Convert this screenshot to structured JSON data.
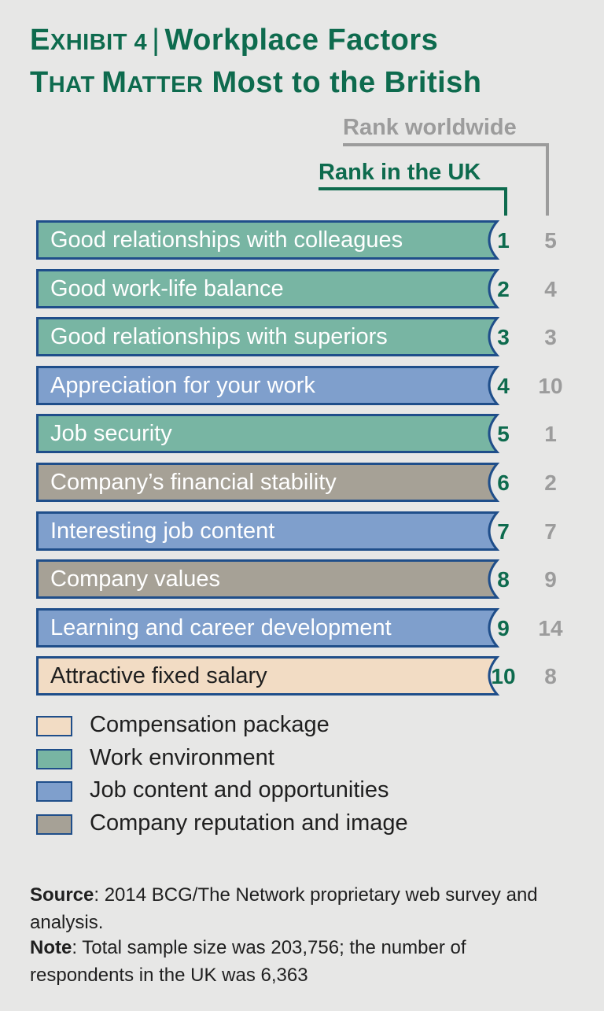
{
  "title": {
    "exhibit_first": "E",
    "exhibit_rest": "XHIBIT 4",
    "separator": "|",
    "line1_rest": "Workplace Factors",
    "line2_caps_a_first": "T",
    "line2_caps_a_rest": "HAT ",
    "line2_caps_b_first": "M",
    "line2_caps_b_rest": "ATTER",
    "line2_rest": " Most to the British"
  },
  "columns": {
    "world_label": "Rank worldwide",
    "uk_label": "Rank in the UK"
  },
  "colors": {
    "work_environment": "#78b5a3",
    "job_content": "#7f9fcc",
    "company_reputation": "#a6a196",
    "compensation": "#f2dcc4",
    "outline": "#1f4e8a",
    "accent_green": "#0e6b4e",
    "muted_gray": "#9c9c9c"
  },
  "chart_data": {
    "type": "table",
    "rows": [
      {
        "factor": "Good relationships with colleagues",
        "category": "work_environment",
        "rank_uk": "1",
        "rank_world": "5"
      },
      {
        "factor": "Good work-life balance",
        "category": "work_environment",
        "rank_uk": "2",
        "rank_world": "4"
      },
      {
        "factor": "Good relationships with superiors",
        "category": "work_environment",
        "rank_uk": "3",
        "rank_world": "3"
      },
      {
        "factor": "Appreciation for your work",
        "category": "job_content",
        "rank_uk": "4",
        "rank_world": "10"
      },
      {
        "factor": "Job security",
        "category": "work_environment",
        "rank_uk": "5",
        "rank_world": "1"
      },
      {
        "factor": "Company’s financial stability",
        "category": "company_reputation",
        "rank_uk": "6",
        "rank_world": "2"
      },
      {
        "factor": "Interesting job content",
        "category": "job_content",
        "rank_uk": "7",
        "rank_world": "7"
      },
      {
        "factor": "Company values",
        "category": "company_reputation",
        "rank_uk": "8",
        "rank_world": "9"
      },
      {
        "factor": "Learning and career development",
        "category": "job_content",
        "rank_uk": "9",
        "rank_world": "14"
      },
      {
        "factor": "Attractive fixed salary",
        "category": "compensation",
        "rank_uk": "10",
        "rank_world": "8"
      }
    ],
    "legend": [
      {
        "key": "compensation",
        "label": "Compensation package"
      },
      {
        "key": "work_environment",
        "label": "Work environment"
      },
      {
        "key": "job_content",
        "label": "Job content and opportunities"
      },
      {
        "key": "company_reputation",
        "label": "Company reputation and image"
      }
    ]
  },
  "footer": {
    "source_label": "Source",
    "source_text": ": 2014 BCG/The Network proprietary web survey and analysis.",
    "note_label": "Note",
    "note_text": ": Total sample size was 203,756; the number of respondents in the UK was 6,363"
  }
}
